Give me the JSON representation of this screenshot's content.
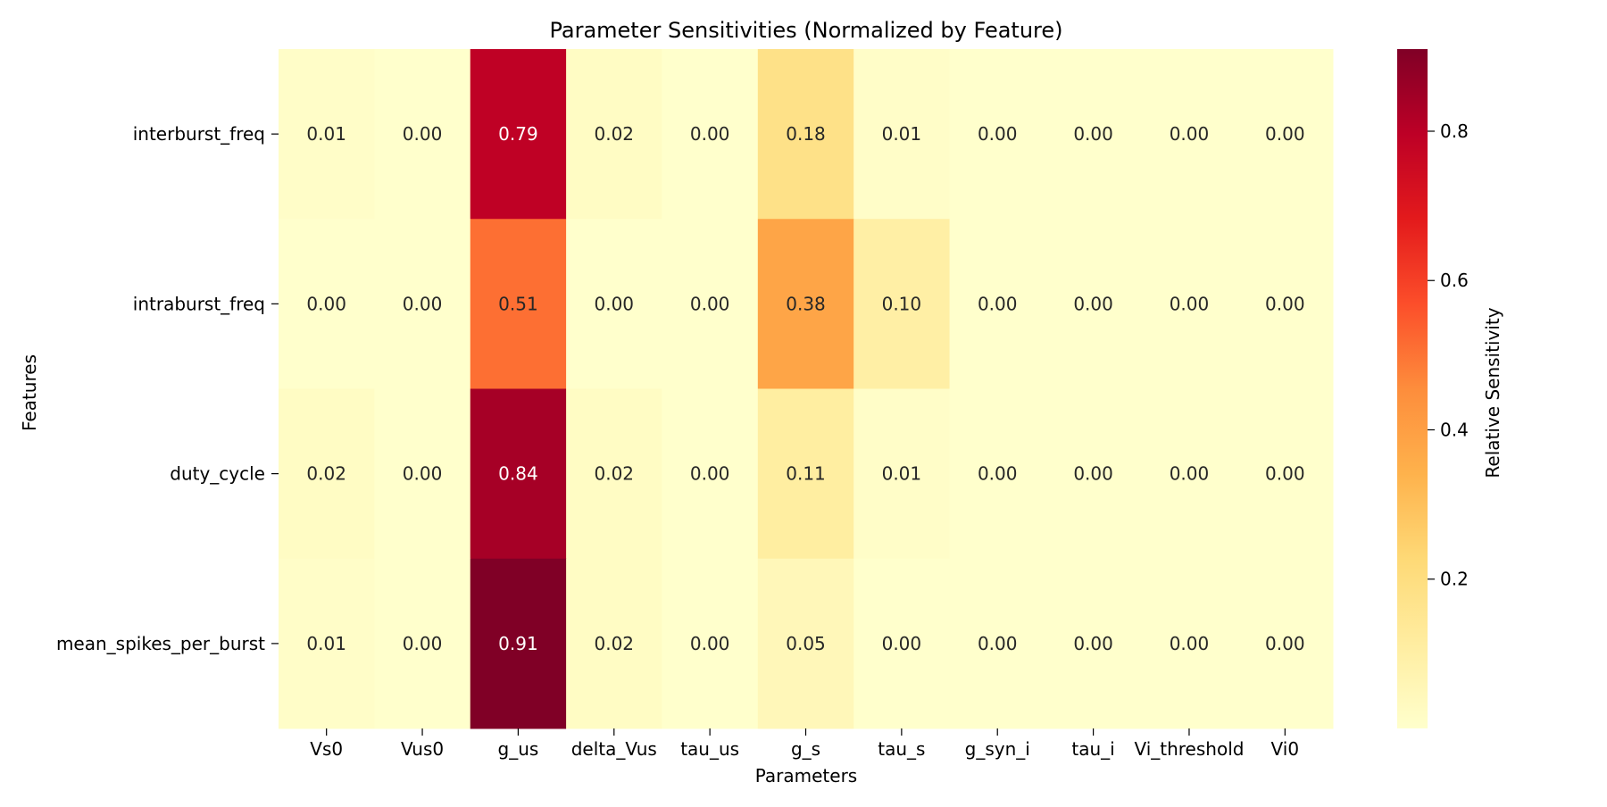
{
  "chart_data": {
    "type": "heatmap",
    "title": "Parameter Sensitivities (Normalized by Feature)",
    "xlabel": "Parameters",
    "ylabel": "Features",
    "x_categories": [
      "Vs0",
      "Vus0",
      "g_us",
      "delta_Vus",
      "tau_us",
      "g_s",
      "tau_s",
      "g_syn_i",
      "tau_i",
      "Vi_threshold",
      "Vi0"
    ],
    "y_categories": [
      "interburst_freq",
      "intraburst_freq",
      "duty_cycle",
      "mean_spikes_per_burst"
    ],
    "values": [
      [
        0.01,
        0.0,
        0.79,
        0.02,
        0.0,
        0.18,
        0.01,
        0.0,
        0.0,
        0.0,
        0.0
      ],
      [
        0.0,
        0.0,
        0.51,
        0.0,
        0.0,
        0.38,
        0.1,
        0.0,
        0.0,
        0.0,
        0.0
      ],
      [
        0.02,
        0.0,
        0.84,
        0.02,
        0.0,
        0.11,
        0.01,
        0.0,
        0.0,
        0.0,
        0.0
      ],
      [
        0.01,
        0.0,
        0.91,
        0.02,
        0.0,
        0.05,
        0.0,
        0.0,
        0.0,
        0.0,
        0.0
      ]
    ],
    "value_format": "0.00",
    "colormap": "YlOrRd",
    "colormap_stops": [
      "#ffffcc",
      "#ffeda0",
      "#fed976",
      "#feb24c",
      "#fd8d3c",
      "#fc4e2a",
      "#e31a1c",
      "#bd0026",
      "#800026"
    ],
    "colorbar": {
      "label": "Relative Sensitivity",
      "range": [
        0.0,
        0.91
      ],
      "ticks": [
        0.2,
        0.4,
        0.6,
        0.8
      ],
      "tick_labels": [
        "0.2",
        "0.4",
        "0.6",
        "0.8"
      ]
    },
    "grid": false,
    "legend": "none"
  }
}
